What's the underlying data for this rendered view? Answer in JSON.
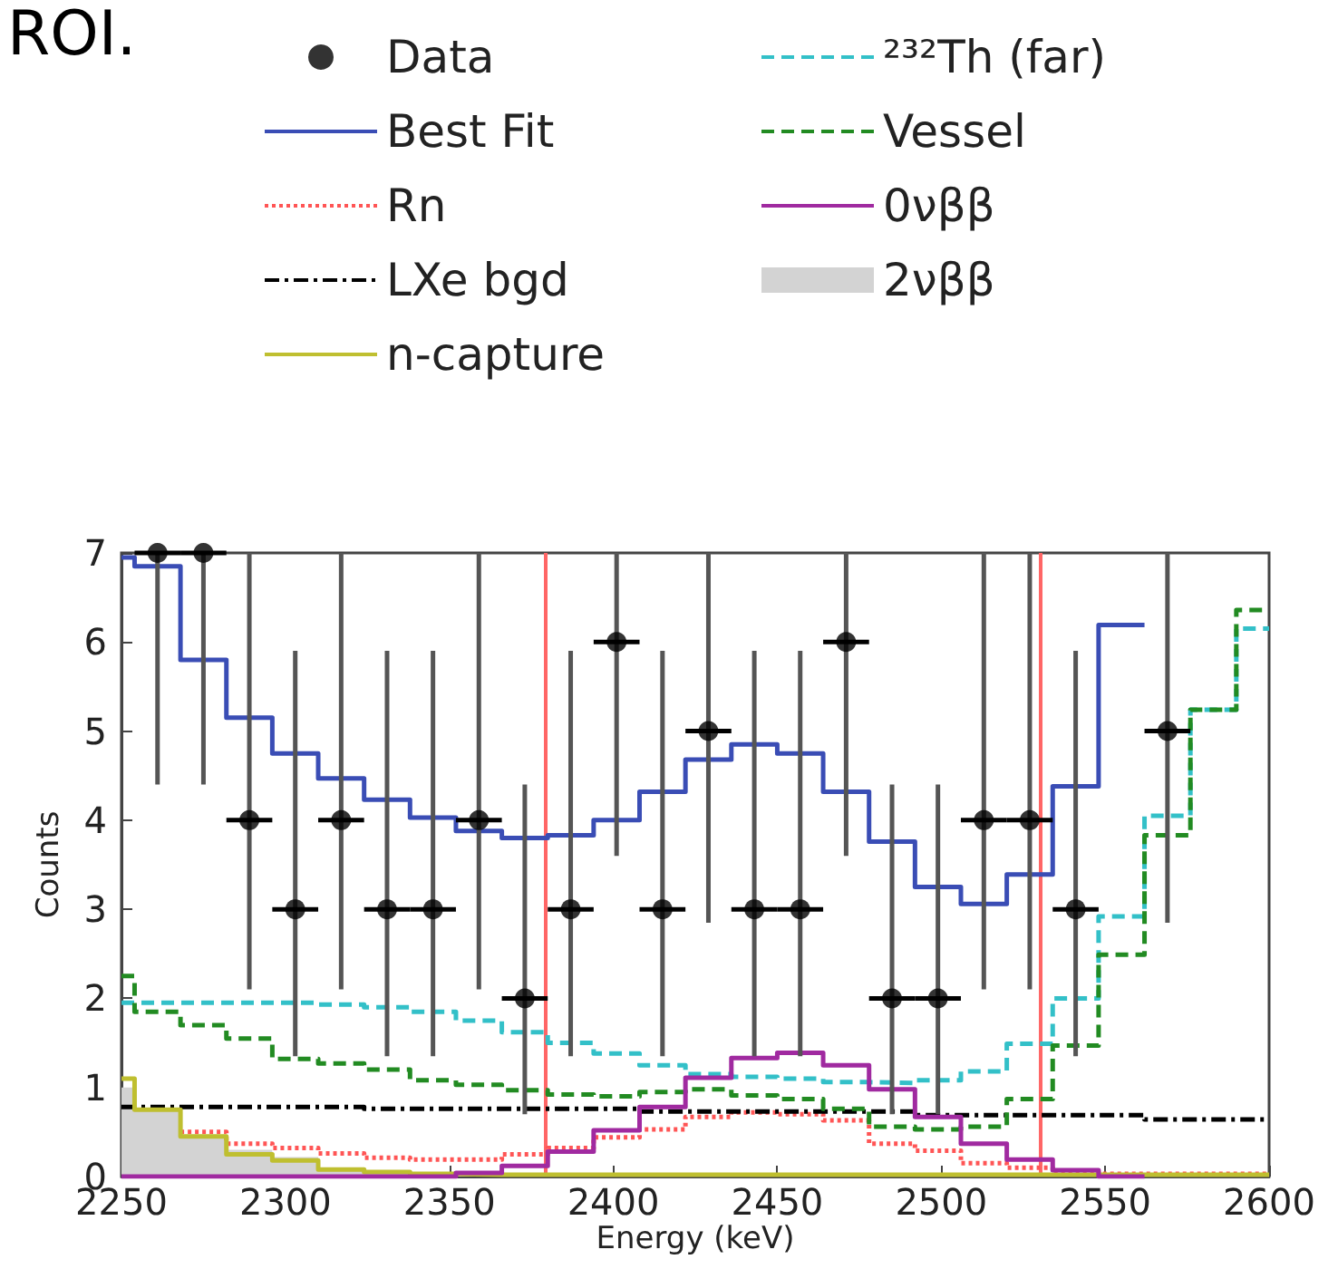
{
  "chart_data": {
    "type": "step",
    "xlabel": "Energy (keV)",
    "ylabel": "Counts",
    "annotations": [
      "ROI."
    ],
    "xlim": [
      2250,
      2600
    ],
    "xticks": [
      2250,
      2300,
      2350,
      2400,
      2450,
      2500,
      2550,
      2600
    ],
    "ylim": [
      0,
      7
    ],
    "yticks": [
      0,
      1,
      2,
      3,
      4,
      5,
      6,
      7
    ],
    "grid": false,
    "legend": "top",
    "ref_lines": [
      {
        "axis": "x",
        "value": 2379,
        "color": "#ff6666"
      },
      {
        "axis": "x",
        "value": 2530,
        "color": "#ff6666"
      }
    ],
    "series": [
      {
        "name": "Data",
        "type": "scatter",
        "marker": "circle",
        "color": "#000000",
        "x": [
          2261,
          2275,
          2289,
          2303,
          2317,
          2331,
          2345,
          2359,
          2373,
          2387,
          2401,
          2415,
          2429,
          2443,
          2457,
          2471,
          2485,
          2499,
          2513,
          2527,
          2541,
          2555,
          2569
        ],
        "values": [
          7,
          7,
          4,
          3,
          4,
          3,
          3,
          4,
          2,
          3,
          6,
          3,
          5,
          3,
          3,
          6,
          2,
          2,
          4,
          4,
          3,
          null,
          5
        ],
        "errors": [
          [
            4.4,
            7
          ],
          [
            4.4,
            7
          ],
          [
            2.1,
            7
          ],
          [
            1.35,
            5.9
          ],
          [
            2.1,
            7
          ],
          [
            1.35,
            5.9
          ],
          [
            1.35,
            5.9
          ],
          [
            2.1,
            7
          ],
          [
            0.7,
            4.4
          ],
          [
            1.35,
            5.9
          ],
          [
            3.6,
            7
          ],
          [
            1.35,
            5.9
          ],
          [
            2.85,
            7
          ],
          [
            1.35,
            5.9
          ],
          [
            1.35,
            5.9
          ],
          [
            3.6,
            7
          ],
          [
            0.7,
            4.4
          ],
          [
            0.7,
            4.4
          ],
          [
            2.1,
            7
          ],
          [
            2.1,
            7
          ],
          [
            1.35,
            5.9
          ],
          null,
          [
            2.85,
            7
          ]
        ],
        "xerrors": [
          7,
          7,
          7,
          7,
          7,
          7,
          7,
          7,
          7,
          7,
          7,
          7,
          7,
          7,
          7,
          7,
          7,
          7,
          7,
          7,
          7,
          null,
          7
        ]
      },
      {
        "name": "Best Fit",
        "line_style": "solid",
        "color": "#3a4db5",
        "x": [
          2250,
          2254,
          2268,
          2282,
          2296,
          2310,
          2324,
          2338,
          2352,
          2366,
          2380,
          2394,
          2408,
          2422,
          2436,
          2450,
          2464,
          2478,
          2492,
          2506,
          2520,
          2534,
          2548,
          2562
        ],
        "values": [
          6.95,
          6.85,
          5.8,
          5.15,
          4.75,
          4.47,
          4.23,
          4.03,
          3.88,
          3.8,
          3.83,
          4.0,
          4.32,
          4.68,
          4.85,
          4.75,
          4.32,
          3.76,
          3.25,
          3.06,
          3.39,
          4.38,
          6.19,
          6.19
        ]
      },
      {
        "name": "Rn",
        "line_style": "dotted",
        "color": "#ff5555",
        "x": [
          2268,
          2282,
          2296,
          2310,
          2324,
          2338,
          2352,
          2366,
          2380,
          2394,
          2408,
          2422,
          2436,
          2450,
          2464,
          2478,
          2492,
          2506,
          2520,
          2534,
          2548,
          2562,
          2576,
          2590,
          2600
        ],
        "values": [
          0.5,
          0.37,
          0.32,
          0.26,
          0.21,
          0.19,
          0.19,
          0.25,
          0.32,
          0.44,
          0.53,
          0.67,
          0.72,
          0.7,
          0.63,
          0.37,
          0.29,
          0.15,
          0.1,
          0.05,
          0.03,
          0.03,
          0.03,
          0.03,
          0.03
        ]
      },
      {
        "name": "LXe bgd",
        "line_style": "dashdot",
        "color": "#000000",
        "x": [
          2250,
          2254,
          2268,
          2282,
          2296,
          2310,
          2324,
          2338,
          2352,
          2366,
          2380,
          2394,
          2408,
          2422,
          2436,
          2450,
          2464,
          2478,
          2492,
          2506,
          2520,
          2534,
          2548,
          2562,
          2576,
          2590,
          2600
        ],
        "values": [
          0.78,
          0.78,
          0.78,
          0.78,
          0.78,
          0.78,
          0.76,
          0.76,
          0.76,
          0.76,
          0.76,
          0.76,
          0.73,
          0.73,
          0.73,
          0.73,
          0.73,
          0.73,
          0.69,
          0.69,
          0.69,
          0.69,
          0.69,
          0.64,
          0.64,
          0.64,
          0.64
        ]
      },
      {
        "name": "n-capture",
        "line_style": "solid",
        "color": "#bfbf30",
        "x": [
          2250,
          2254,
          2268,
          2282,
          2296,
          2310,
          2324,
          2338,
          2352,
          2366,
          2380,
          2394,
          2408,
          2422,
          2436,
          2450,
          2464,
          2478,
          2492,
          2506,
          2520,
          2534,
          2548,
          2562,
          2576,
          2590,
          2600
        ],
        "values": [
          1.1,
          0.75,
          0.45,
          0.25,
          0.18,
          0.08,
          0.05,
          0.03,
          0.02,
          0.02,
          0.02,
          0.02,
          0.02,
          0.02,
          0.02,
          0.02,
          0.02,
          0.02,
          0.02,
          0.02,
          0.02,
          0.02,
          0.02,
          0.02,
          0.02,
          0.02,
          0.02
        ]
      },
      {
        "name": "²³²Th (far)",
        "line_style": "dashed",
        "color": "#33c0c8",
        "x": [
          2250,
          2254,
          2268,
          2282,
          2296,
          2310,
          2324,
          2338,
          2352,
          2366,
          2380,
          2394,
          2408,
          2422,
          2436,
          2450,
          2464,
          2478,
          2492,
          2506,
          2520,
          2534,
          2548,
          2562,
          2576,
          2590,
          2600
        ],
        "values": [
          1.95,
          1.95,
          1.95,
          1.95,
          1.95,
          1.93,
          1.9,
          1.85,
          1.75,
          1.62,
          1.5,
          1.38,
          1.25,
          1.15,
          1.12,
          1.1,
          1.06,
          1.05,
          1.08,
          1.18,
          1.49,
          2.0,
          2.92,
          4.05,
          5.24,
          6.15,
          6.15
        ]
      },
      {
        "name": "Vessel",
        "line_style": "dashed",
        "color": "#228b22",
        "x": [
          2250,
          2254,
          2268,
          2282,
          2296,
          2310,
          2324,
          2338,
          2352,
          2366,
          2380,
          2394,
          2408,
          2422,
          2436,
          2450,
          2464,
          2478,
          2492,
          2506,
          2520,
          2534,
          2548,
          2562,
          2576,
          2590,
          2600
        ],
        "values": [
          2.25,
          1.85,
          1.7,
          1.55,
          1.32,
          1.27,
          1.2,
          1.08,
          1.03,
          0.97,
          0.92,
          0.9,
          0.95,
          0.98,
          0.91,
          0.87,
          0.76,
          0.56,
          0.53,
          0.56,
          0.87,
          1.47,
          2.49,
          3.83,
          5.24,
          6.36,
          6.36
        ]
      },
      {
        "name": "0νββ",
        "line_style": "solid",
        "color": "#a02aa0",
        "x": [
          2250,
          2254,
          2268,
          2282,
          2296,
          2310,
          2324,
          2338,
          2352,
          2366,
          2380,
          2394,
          2408,
          2422,
          2436,
          2450,
          2464,
          2478,
          2492,
          2506,
          2520,
          2534,
          2548,
          2562
        ],
        "values": [
          0,
          0,
          0,
          0,
          0,
          0,
          0,
          0,
          0.04,
          0.12,
          0.28,
          0.52,
          0.78,
          1.11,
          1.33,
          1.39,
          1.25,
          0.98,
          0.67,
          0.37,
          0.19,
          0.07,
          0,
          0
        ]
      },
      {
        "name": "2νββ",
        "type": "area",
        "color": "#d3d3d3",
        "x": [
          2250,
          2254,
          2268,
          2282,
          2296,
          2310,
          2324,
          2338,
          2352,
          2366,
          2380,
          2394,
          2408,
          2422,
          2436,
          2450,
          2464,
          2478,
          2492,
          2506,
          2520,
          2534,
          2548,
          2562,
          2576,
          2590,
          2600
        ],
        "values": [
          1.0,
          0.75,
          0.45,
          0.3,
          0.22,
          0.1,
          0.05,
          0.03,
          0.01,
          0.01,
          0.01,
          0.01,
          0.01,
          0.01,
          0.01,
          0.01,
          0.01,
          0.01,
          0.01,
          0.01,
          0.01,
          0.01,
          0.01,
          0.01,
          0.01,
          0.01,
          0.01
        ]
      }
    ]
  }
}
